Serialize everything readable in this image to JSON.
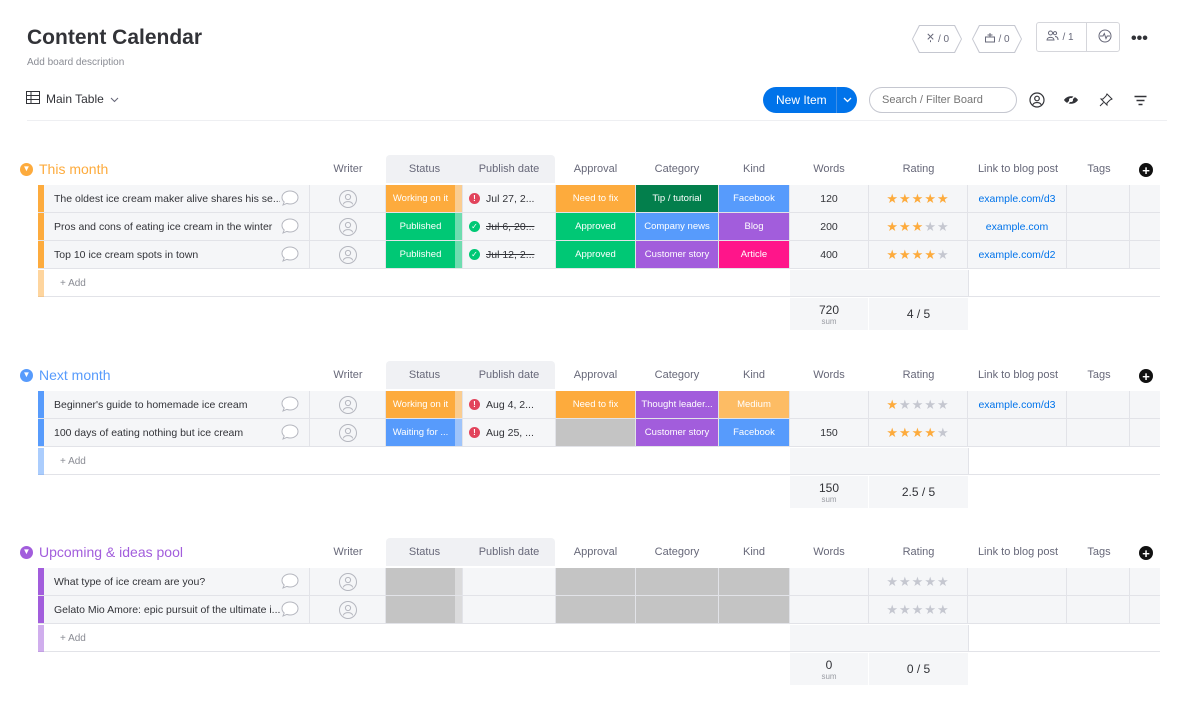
{
  "board": {
    "title": "Content Calendar",
    "description": "Add board description"
  },
  "header": {
    "automations_count": "/ 0",
    "integrations_count": "/ 0",
    "members_count": "/ 1",
    "more_label": "•••"
  },
  "toolbar": {
    "view_label": "Main Table",
    "new_item_label": "New Item",
    "search_placeholder": "Search / Filter Board"
  },
  "columns": {
    "writer": "Writer",
    "status": "Status",
    "publish_date": "Publish date",
    "approval": "Approval",
    "category": "Category",
    "kind": "Kind",
    "words": "Words",
    "rating": "Rating",
    "link": "Link to blog post",
    "tags": "Tags"
  },
  "colors": {
    "working_on_it": "#fdab3d",
    "published": "#00c875",
    "waiting": "#579bfc",
    "need_to_fix": "#fdab3d",
    "approved": "#00c875",
    "tip_tutorial": "#037f4c",
    "company_news": "#579bfc",
    "customer_story": "#a25ddc",
    "thought_leader": "#a25ddc",
    "facebook": "#579bfc",
    "blog": "#a25ddc",
    "article": "#ff158a",
    "medium": "#fdbc64",
    "empty": "#c4c4c4",
    "group_this_month": "#fdab3d",
    "group_next_month": "#579bfc",
    "group_upcoming": "#a25ddc"
  },
  "add_label": "+ Add",
  "sum_label": "sum",
  "groups": [
    {
      "title": "This month",
      "words_sum": "720",
      "rating_summary": "4 / 5",
      "rows": [
        {
          "name": "The oldest ice cream maker alive shares his se...",
          "status": "Working on it",
          "date": "Jul 27, 2...",
          "date_done": false,
          "approval": "Need to fix",
          "category": "Tip / tutorial",
          "kind": "Facebook",
          "words": "120",
          "rating": 5,
          "link": "example.com/d3"
        },
        {
          "name": "Pros and cons of eating ice cream in the winter",
          "status": "Published",
          "date": "Jul 6, 20...",
          "date_done": true,
          "approval": "Approved",
          "category": "Company news",
          "kind": "Blog",
          "words": "200",
          "rating": 3,
          "link": "example.com"
        },
        {
          "name": "Top 10 ice cream spots in town",
          "status": "Published",
          "date": "Jul 12, 2...",
          "date_done": true,
          "approval": "Approved",
          "category": "Customer story",
          "kind": "Article",
          "words": "400",
          "rating": 4,
          "link": "example.com/d2"
        }
      ]
    },
    {
      "title": "Next month",
      "words_sum": "150",
      "rating_summary": "2.5 / 5",
      "rows": [
        {
          "name": "Beginner's guide to homemade ice cream",
          "status": "Working on it",
          "date": "Aug 4, 2...",
          "date_done": false,
          "approval": "Need to fix",
          "category": "Thought leader...",
          "kind": "Medium",
          "words": "",
          "rating": 1,
          "link": "example.com/d3"
        },
        {
          "name": "100 days of eating nothing but ice cream",
          "status": "Waiting for ...",
          "date": "Aug 25, ...",
          "date_done": false,
          "approval": "",
          "category": "Customer story",
          "kind": "Facebook",
          "words": "150",
          "rating": 4,
          "link": ""
        }
      ]
    },
    {
      "title": "Upcoming & ideas pool",
      "words_sum": "0",
      "rating_summary": "0 / 5",
      "rows": [
        {
          "name": "What type of ice cream are you?",
          "status": "",
          "date": "",
          "date_done": false,
          "approval": "",
          "category": "",
          "kind": "",
          "words": "",
          "rating": 0,
          "link": ""
        },
        {
          "name": "Gelato Mio Amore: epic pursuit of the ultimate i...",
          "status": "",
          "date": "",
          "date_done": false,
          "approval": "",
          "category": "",
          "kind": "",
          "words": "",
          "rating": 0,
          "link": ""
        }
      ]
    }
  ]
}
